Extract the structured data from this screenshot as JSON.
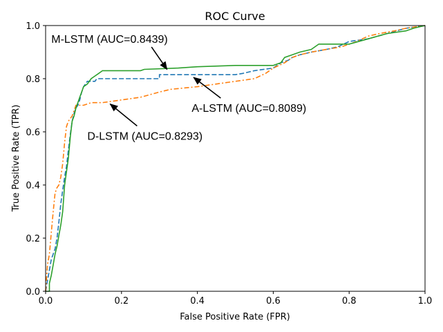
{
  "chart_data": {
    "type": "line",
    "title": "ROC Curve",
    "xlabel": "False Positive Rate (FPR)",
    "ylabel": "True Positive Rate (TPR)",
    "xlim": [
      0,
      1
    ],
    "ylim": [
      0,
      1
    ],
    "xticks": [
      "0.0",
      "0.2",
      "0.4",
      "0.6",
      "0.8",
      "1.0"
    ],
    "yticks": [
      "0.0",
      "0.2",
      "0.4",
      "0.6",
      "0.8",
      "1.0"
    ],
    "grid": false,
    "series": [
      {
        "name": "A-LSTM",
        "auc": 0.8089,
        "color": "#1f77b4",
        "dash": "dashed",
        "points": [
          [
            0,
            0
          ],
          [
            0.005,
            0.04
          ],
          [
            0.01,
            0.08
          ],
          [
            0.015,
            0.12
          ],
          [
            0.02,
            0.14
          ],
          [
            0.025,
            0.16
          ],
          [
            0.03,
            0.2
          ],
          [
            0.035,
            0.26
          ],
          [
            0.04,
            0.33
          ],
          [
            0.045,
            0.38
          ],
          [
            0.05,
            0.43
          ],
          [
            0.055,
            0.47
          ],
          [
            0.06,
            0.53
          ],
          [
            0.065,
            0.59
          ],
          [
            0.07,
            0.64
          ],
          [
            0.075,
            0.67
          ],
          [
            0.08,
            0.69
          ],
          [
            0.085,
            0.7
          ],
          [
            0.09,
            0.72
          ],
          [
            0.095,
            0.75
          ],
          [
            0.1,
            0.77
          ],
          [
            0.105,
            0.78
          ],
          [
            0.11,
            0.79
          ],
          [
            0.13,
            0.79
          ],
          [
            0.135,
            0.8
          ],
          [
            0.2,
            0.8
          ],
          [
            0.3,
            0.8
          ],
          [
            0.3,
            0.815
          ],
          [
            0.4,
            0.815
          ],
          [
            0.5,
            0.815
          ],
          [
            0.52,
            0.82
          ],
          [
            0.55,
            0.83
          ],
          [
            0.6,
            0.84
          ],
          [
            0.62,
            0.86
          ],
          [
            0.64,
            0.87
          ],
          [
            0.65,
            0.88
          ],
          [
            0.67,
            0.89
          ],
          [
            0.7,
            0.9
          ],
          [
            0.74,
            0.91
          ],
          [
            0.77,
            0.92
          ],
          [
            0.8,
            0.94
          ],
          [
            0.85,
            0.95
          ],
          [
            0.9,
            0.97
          ],
          [
            0.95,
            0.99
          ],
          [
            1.0,
            1.0
          ]
        ]
      },
      {
        "name": "D-LSTM",
        "auc": 0.8293,
        "color": "#ff7f0e",
        "dash": "dashdot",
        "points": [
          [
            0,
            0
          ],
          [
            0.005,
            0.1
          ],
          [
            0.01,
            0.14
          ],
          [
            0.015,
            0.22
          ],
          [
            0.02,
            0.3
          ],
          [
            0.025,
            0.37
          ],
          [
            0.03,
            0.39
          ],
          [
            0.035,
            0.4
          ],
          [
            0.04,
            0.43
          ],
          [
            0.045,
            0.48
          ],
          [
            0.05,
            0.56
          ],
          [
            0.055,
            0.62
          ],
          [
            0.06,
            0.64
          ],
          [
            0.065,
            0.65
          ],
          [
            0.07,
            0.66
          ],
          [
            0.075,
            0.68
          ],
          [
            0.08,
            0.7
          ],
          [
            0.09,
            0.7
          ],
          [
            0.1,
            0.7
          ],
          [
            0.12,
            0.71
          ],
          [
            0.15,
            0.71
          ],
          [
            0.2,
            0.72
          ],
          [
            0.25,
            0.73
          ],
          [
            0.3,
            0.75
          ],
          [
            0.33,
            0.76
          ],
          [
            0.4,
            0.77
          ],
          [
            0.45,
            0.78
          ],
          [
            0.5,
            0.79
          ],
          [
            0.55,
            0.8
          ],
          [
            0.58,
            0.82
          ],
          [
            0.6,
            0.84
          ],
          [
            0.63,
            0.86
          ],
          [
            0.65,
            0.88
          ],
          [
            0.67,
            0.89
          ],
          [
            0.7,
            0.9
          ],
          [
            0.74,
            0.91
          ],
          [
            0.78,
            0.92
          ],
          [
            0.82,
            0.94
          ],
          [
            0.85,
            0.96
          ],
          [
            0.88,
            0.97
          ],
          [
            0.92,
            0.98
          ],
          [
            0.95,
            0.99
          ],
          [
            1.0,
            1.0
          ]
        ]
      },
      {
        "name": "M-LSTM",
        "auc": 0.8439,
        "color": "#2ca02c",
        "dash": "solid",
        "points": [
          [
            0,
            0
          ],
          [
            0.01,
            0.0
          ],
          [
            0.01,
            0.03
          ],
          [
            0.015,
            0.06
          ],
          [
            0.02,
            0.1
          ],
          [
            0.025,
            0.14
          ],
          [
            0.03,
            0.17
          ],
          [
            0.035,
            0.21
          ],
          [
            0.04,
            0.25
          ],
          [
            0.045,
            0.3
          ],
          [
            0.05,
            0.4
          ],
          [
            0.055,
            0.45
          ],
          [
            0.06,
            0.5
          ],
          [
            0.065,
            0.58
          ],
          [
            0.07,
            0.64
          ],
          [
            0.075,
            0.66
          ],
          [
            0.08,
            0.69
          ],
          [
            0.085,
            0.71
          ],
          [
            0.09,
            0.73
          ],
          [
            0.095,
            0.75
          ],
          [
            0.1,
            0.77
          ],
          [
            0.11,
            0.78
          ],
          [
            0.12,
            0.8
          ],
          [
            0.13,
            0.81
          ],
          [
            0.14,
            0.82
          ],
          [
            0.15,
            0.83
          ],
          [
            0.2,
            0.83
          ],
          [
            0.25,
            0.83
          ],
          [
            0.26,
            0.835
          ],
          [
            0.35,
            0.84
          ],
          [
            0.4,
            0.845
          ],
          [
            0.5,
            0.85
          ],
          [
            0.6,
            0.85
          ],
          [
            0.62,
            0.86
          ],
          [
            0.63,
            0.88
          ],
          [
            0.65,
            0.89
          ],
          [
            0.67,
            0.9
          ],
          [
            0.7,
            0.91
          ],
          [
            0.72,
            0.93
          ],
          [
            0.8,
            0.93
          ],
          [
            0.85,
            0.95
          ],
          [
            0.9,
            0.97
          ],
          [
            0.95,
            0.98
          ],
          [
            0.97,
            0.99
          ],
          [
            1.0,
            1.0
          ]
        ]
      }
    ],
    "annotations": [
      {
        "text": "M-LSTM (AUC=0.8439)",
        "text_at": [
          0.015,
          0.935
        ],
        "arrow_to": [
          0.32,
          0.835
        ]
      },
      {
        "text": "A-LSTM (AUC=0.8089)",
        "text_at": [
          0.385,
          0.675
        ],
        "arrow_to": [
          0.39,
          0.805
        ]
      },
      {
        "text": "D-LSTM (AUC=0.8293)",
        "text_at": [
          0.11,
          0.57
        ],
        "arrow_to": [
          0.17,
          0.705
        ]
      }
    ]
  }
}
